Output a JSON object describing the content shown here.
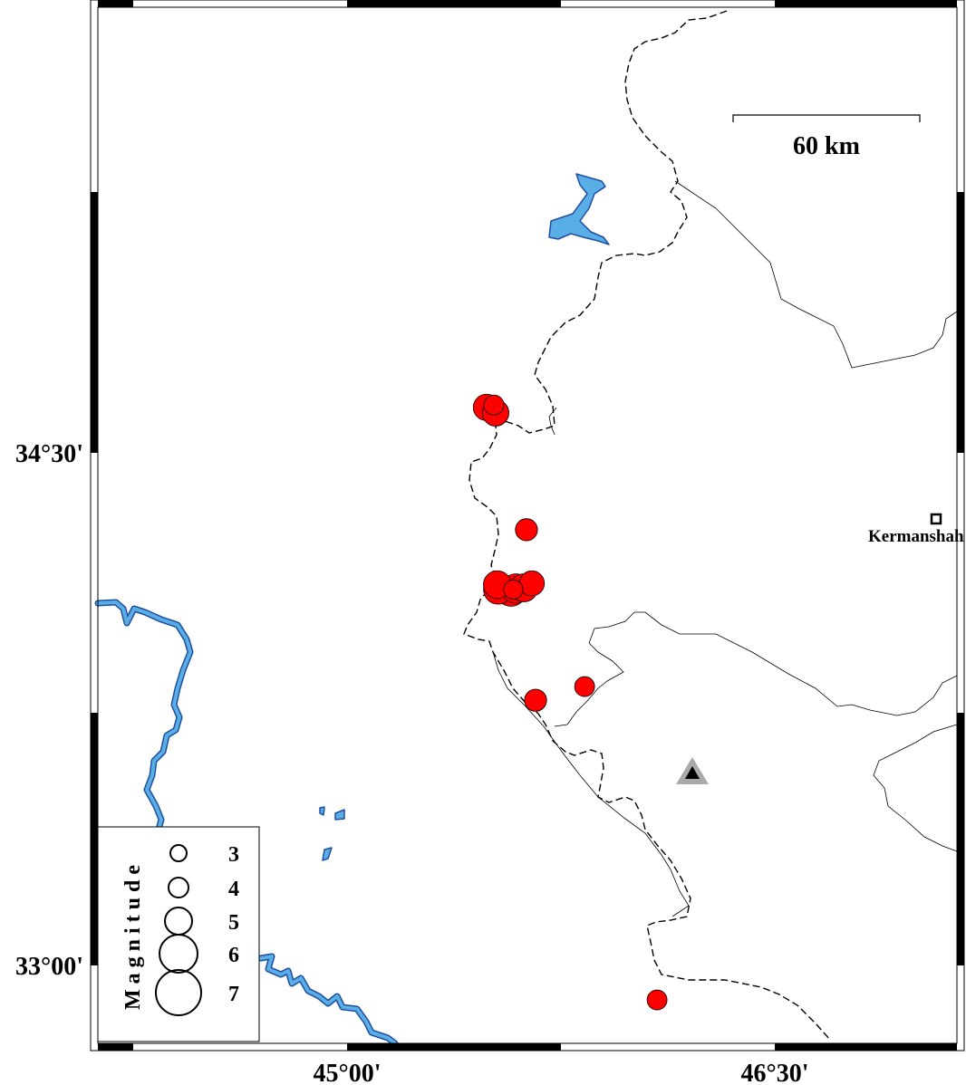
{
  "map": {
    "colors": {
      "quake": "#ff0000",
      "water": "#5aaee6",
      "water_outline": "#1f4fa0",
      "station": "#aaaaaa"
    },
    "lon_ticks": [
      {
        "label": "45°00'",
        "lon": 45.0
      },
      {
        "label": "46°30'",
        "lon": 46.5
      }
    ],
    "lat_ticks": [
      {
        "label": "34°30'",
        "lat": 34.5
      },
      {
        "label": "33°00'",
        "lat": 33.0
      }
    ],
    "scale_bar": {
      "label": "60 km"
    },
    "city": {
      "name": "Kermanshah",
      "symbol": "square-icon"
    },
    "station": {
      "symbol": "triangle-icon"
    },
    "legend": {
      "title": "Magnitude",
      "items": [
        {
          "label": "3",
          "mag": 3
        },
        {
          "label": "4",
          "mag": 4
        },
        {
          "label": "5",
          "mag": 5
        },
        {
          "label": "6",
          "mag": 6
        },
        {
          "label": "7",
          "mag": 7
        }
      ]
    },
    "events": [
      {
        "lon": 45.489,
        "lat": 34.633,
        "mag": 4.4
      },
      {
        "lon": 45.515,
        "lat": 34.64,
        "mag": 4.0
      },
      {
        "lon": 45.521,
        "lat": 34.617,
        "mag": 4.4
      },
      {
        "lon": 45.629,
        "lat": 34.275,
        "mag": 3.8
      },
      {
        "lon": 45.527,
        "lat": 34.114,
        "mag": 4.6
      },
      {
        "lon": 45.53,
        "lat": 34.1,
        "mag": 4.8
      },
      {
        "lon": 45.575,
        "lat": 34.095,
        "mag": 4.9
      },
      {
        "lon": 45.592,
        "lat": 34.103,
        "mag": 4.8
      },
      {
        "lon": 45.62,
        "lat": 34.105,
        "mag": 4.6
      },
      {
        "lon": 45.648,
        "lat": 34.118,
        "mag": 4.2
      },
      {
        "lon": 45.583,
        "lat": 34.1,
        "mag": 3.4
      },
      {
        "lon": 45.661,
        "lat": 33.776,
        "mag": 3.8
      },
      {
        "lon": 45.833,
        "lat": 33.816,
        "mag": 4.0
      },
      {
        "lon": 46.087,
        "lat": 32.899,
        "mag": 3.5
      }
    ]
  }
}
